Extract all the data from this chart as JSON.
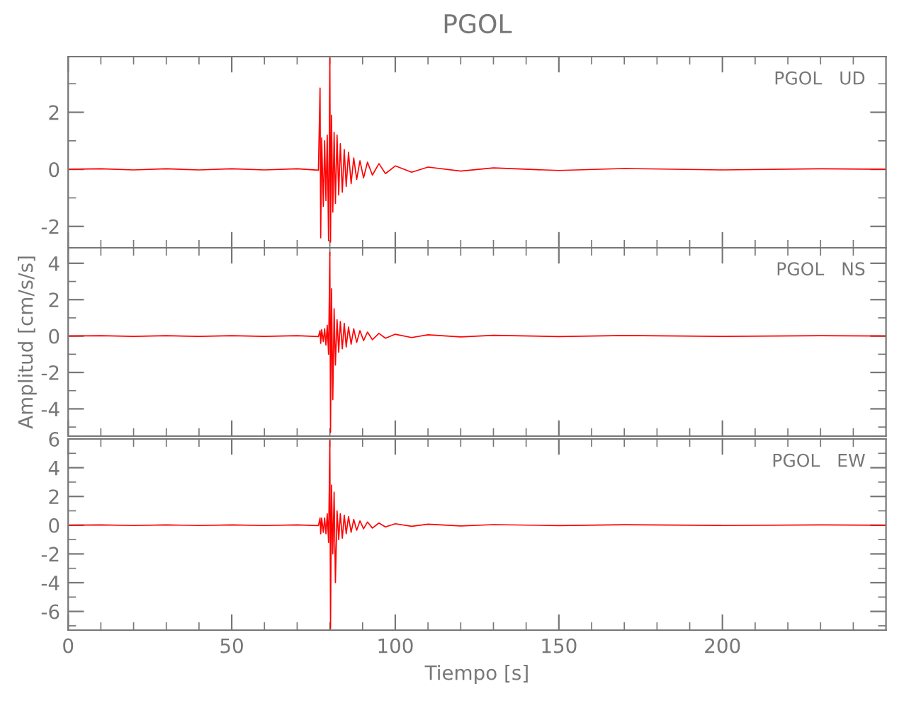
{
  "chart_data": [
    {
      "type": "line",
      "title": "PGOL",
      "annotations": [
        "PGOL   UD"
      ],
      "tick_labels": "y",
      "xlim": [
        0,
        250
      ],
      "ylim": [
        -2.75,
        3.95
      ],
      "xticks": [
        0,
        {
          "value": 10,
          "label": null
        },
        {
          "value": 20,
          "label": null
        },
        {
          "value": 30,
          "label": null
        },
        {
          "value": 40,
          "label": null
        },
        50,
        {
          "value": 60,
          "label": null
        },
        {
          "value": 70,
          "label": null
        },
        {
          "value": 80,
          "label": null
        },
        {
          "value": 90,
          "label": null
        },
        100,
        {
          "value": 110,
          "label": null
        },
        {
          "value": 120,
          "label": null
        },
        {
          "value": 130,
          "label": null
        },
        {
          "value": 140,
          "label": null
        },
        150,
        {
          "value": 160,
          "label": null
        },
        {
          "value": 170,
          "label": null
        },
        {
          "value": 180,
          "label": null
        },
        {
          "value": 190,
          "label": null
        },
        200,
        {
          "value": 210,
          "label": null
        },
        {
          "value": 220,
          "label": null
        },
        {
          "value": 230,
          "label": null
        },
        {
          "value": 240,
          "label": null
        }
      ],
      "yticks": [
        -2,
        {
          "value": -1,
          "label": null
        },
        0,
        {
          "value": 1,
          "label": null
        },
        2,
        {
          "value": 3,
          "label": null
        }
      ],
      "series": [
        {
          "color": "#ff0000",
          "x": [
            0,
            10,
            20,
            30,
            40,
            50,
            60,
            70,
            76.5,
            77,
            77.2,
            77.5,
            78,
            78.4,
            78.8,
            79.2,
            79.6,
            80,
            80.2,
            80.5,
            80.9,
            81.3,
            81.7,
            82.2,
            82.7,
            83.2,
            83.8,
            84.4,
            85,
            85.7,
            86.5,
            87.3,
            88.2,
            89.2,
            90.3,
            91.5,
            93,
            95,
            97,
            100,
            105,
            110,
            120,
            130,
            150,
            170,
            200,
            230,
            250
          ],
          "values": [
            0,
            0.02,
            -0.02,
            0.02,
            -0.02,
            0.02,
            -0.02,
            0.02,
            -0.03,
            2.85,
            -2.4,
            1.1,
            -1.3,
            1.0,
            -1.1,
            1.2,
            -2.5,
            3.9,
            -2.55,
            1.9,
            -1.5,
            1.3,
            -1.2,
            1.2,
            -0.9,
            0.9,
            -0.8,
            0.7,
            -0.6,
            0.6,
            -0.5,
            0.4,
            -0.35,
            0.3,
            -0.3,
            0.25,
            -0.2,
            0.2,
            -0.15,
            0.12,
            -0.1,
            0.08,
            -0.06,
            0.05,
            -0.04,
            0.03,
            -0.02,
            0.02,
            0
          ]
        }
      ]
    },
    {
      "type": "line",
      "ylabel": "Amplitud [cm/s/s]",
      "annotations": [
        "PGOL   NS"
      ],
      "tick_labels": "y",
      "xlim": [
        0,
        250
      ],
      "ylim": [
        -5.5,
        4.85
      ],
      "xticks": [
        0,
        {
          "value": 10,
          "label": null
        },
        {
          "value": 20,
          "label": null
        },
        {
          "value": 30,
          "label": null
        },
        {
          "value": 40,
          "label": null
        },
        50,
        {
          "value": 60,
          "label": null
        },
        {
          "value": 70,
          "label": null
        },
        {
          "value": 80,
          "label": null
        },
        {
          "value": 90,
          "label": null
        },
        100,
        {
          "value": 110,
          "label": null
        },
        {
          "value": 120,
          "label": null
        },
        {
          "value": 130,
          "label": null
        },
        {
          "value": 140,
          "label": null
        },
        150,
        {
          "value": 160,
          "label": null
        },
        {
          "value": 170,
          "label": null
        },
        {
          "value": 180,
          "label": null
        },
        {
          "value": 190,
          "label": null
        },
        200,
        {
          "value": 210,
          "label": null
        },
        {
          "value": 220,
          "label": null
        },
        {
          "value": 230,
          "label": null
        },
        {
          "value": 240,
          "label": null
        }
      ],
      "yticks": [
        {
          "value": -5,
          "label": null
        },
        -4,
        {
          "value": -3,
          "label": null
        },
        -2,
        {
          "value": -1,
          "label": null
        },
        0,
        {
          "value": 1,
          "label": null
        },
        2,
        {
          "value": 3,
          "label": null
        },
        4
      ],
      "series": [
        {
          "color": "#ff0000",
          "x": [
            0,
            10,
            20,
            30,
            40,
            50,
            60,
            70,
            76.5,
            77,
            77.2,
            77.5,
            78,
            78.4,
            78.8,
            79.2,
            79.6,
            80,
            80.2,
            80.5,
            80.9,
            81.3,
            81.7,
            82.2,
            82.7,
            83.2,
            83.8,
            84.4,
            85,
            85.7,
            86.5,
            87.3,
            88.2,
            89.2,
            90.3,
            91.5,
            93,
            95,
            97,
            100,
            105,
            110,
            120,
            130,
            150,
            170,
            200,
            230,
            250
          ],
          "values": [
            0,
            0.02,
            -0.02,
            0.02,
            -0.02,
            0.02,
            -0.02,
            0.02,
            -0.03,
            0.3,
            -0.4,
            0.35,
            -0.3,
            0.4,
            -0.5,
            0.6,
            -1.0,
            4.6,
            -5.3,
            2.6,
            -3.5,
            1.5,
            -1.6,
            0.9,
            -0.9,
            0.8,
            -0.7,
            0.7,
            -0.6,
            0.5,
            -0.45,
            0.4,
            -0.35,
            0.3,
            -0.25,
            0.22,
            -0.2,
            0.15,
            -0.12,
            0.1,
            -0.08,
            0.07,
            -0.05,
            0.04,
            -0.03,
            0.03,
            -0.02,
            0.02,
            0
          ]
        }
      ]
    },
    {
      "type": "line",
      "xlabel": "Tiempo [s]",
      "annotations": [
        "PGOL   EW"
      ],
      "xlim": [
        0,
        250
      ],
      "ylim": [
        -7.3,
        6
      ],
      "xticks": [
        0,
        {
          "value": 10,
          "label": null
        },
        {
          "value": 20,
          "label": null
        },
        {
          "value": 30,
          "label": null
        },
        {
          "value": 40,
          "label": null
        },
        50,
        {
          "value": 60,
          "label": null
        },
        {
          "value": 70,
          "label": null
        },
        {
          "value": 80,
          "label": null
        },
        {
          "value": 90,
          "label": null
        },
        100,
        {
          "value": 110,
          "label": null
        },
        {
          "value": 120,
          "label": null
        },
        {
          "value": 130,
          "label": null
        },
        {
          "value": 140,
          "label": null
        },
        150,
        {
          "value": 160,
          "label": null
        },
        {
          "value": 170,
          "label": null
        },
        {
          "value": 180,
          "label": null
        },
        {
          "value": 190,
          "label": null
        },
        200,
        {
          "value": 210,
          "label": null
        },
        {
          "value": 220,
          "label": null
        },
        {
          "value": 230,
          "label": null
        },
        {
          "value": 240,
          "label": null
        }
      ],
      "yticks": [
        {
          "value": -7,
          "label": null
        },
        -6,
        {
          "value": -5,
          "label": null
        },
        -4,
        {
          "value": -3,
          "label": null
        },
        -2,
        {
          "value": -1,
          "label": null
        },
        0,
        {
          "value": 1,
          "label": null
        },
        2,
        {
          "value": 3,
          "label": null
        },
        4,
        {
          "value": 5,
          "label": null
        },
        6
      ],
      "series": [
        {
          "color": "#ff0000",
          "x": [
            0,
            10,
            20,
            30,
            40,
            50,
            60,
            70,
            76.5,
            77,
            77.2,
            77.5,
            78,
            78.4,
            78.8,
            79.2,
            79.6,
            80,
            80.2,
            80.5,
            80.9,
            81.3,
            81.7,
            82.2,
            82.7,
            83.2,
            83.8,
            84.4,
            85,
            85.7,
            86.5,
            87.3,
            88.2,
            89.2,
            90.3,
            91.5,
            93,
            95,
            97,
            100,
            105,
            110,
            120,
            130,
            150,
            170,
            200,
            230,
            250
          ],
          "values": [
            0,
            0.02,
            -0.02,
            0.02,
            -0.02,
            0.02,
            -0.02,
            0.02,
            -0.03,
            0.5,
            -0.6,
            0.5,
            -0.5,
            0.5,
            -0.6,
            0.8,
            -1.2,
            5.9,
            -7.2,
            2.8,
            -2.0,
            2.3,
            -4.0,
            1.0,
            -1.0,
            0.8,
            -0.9,
            0.7,
            -0.6,
            0.6,
            -0.5,
            0.4,
            -0.35,
            0.3,
            -0.25,
            0.22,
            -0.2,
            0.15,
            -0.12,
            0.1,
            -0.08,
            0.07,
            -0.05,
            0.04,
            -0.03,
            0.03,
            -0.02,
            0.02,
            0
          ]
        }
      ]
    }
  ]
}
